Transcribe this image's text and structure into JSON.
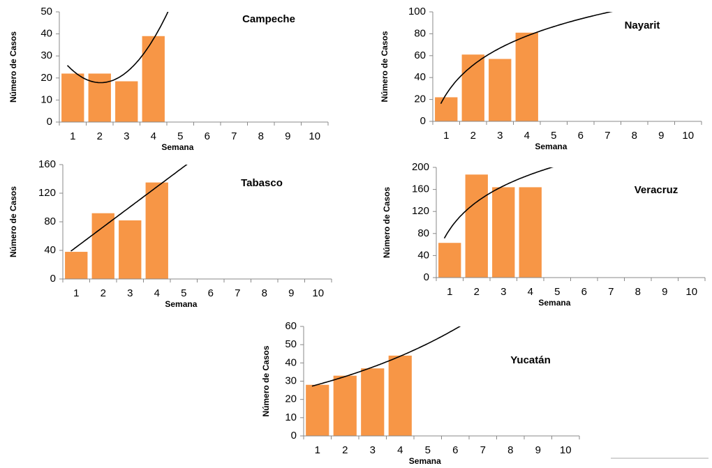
{
  "chart_data": [
    {
      "type": "bar",
      "title": "Campeche",
      "x_label": "Semana",
      "y_label": "Número de Casos",
      "categories": [
        "1",
        "2",
        "3",
        "4",
        "5",
        "6",
        "7",
        "8",
        "9",
        "10"
      ],
      "values": [
        22,
        22,
        18.5,
        39,
        null,
        null,
        null,
        null,
        null,
        null
      ],
      "color": "#f79646",
      "ylim": [
        0,
        50
      ],
      "yticks": [
        0,
        10,
        20,
        30,
        40,
        50
      ],
      "trendline": "poly2"
    },
    {
      "type": "bar",
      "title": "Nayarit",
      "x_label": "Semana",
      "y_label": "Número de Casos",
      "categories": [
        "1",
        "2",
        "3",
        "4",
        "5",
        "6",
        "7",
        "8",
        "9",
        "10"
      ],
      "values": [
        22,
        61,
        57,
        81,
        null,
        null,
        null,
        null,
        null,
        null
      ],
      "color": "#f79646",
      "ylim": [
        0,
        100
      ],
      "yticks": [
        0,
        20,
        40,
        60,
        80,
        100
      ],
      "trendline": "log"
    },
    {
      "type": "bar",
      "title": "Tabasco",
      "x_label": "Semana",
      "y_label": "Número de Casos",
      "categories": [
        "1",
        "2",
        "3",
        "4",
        "5",
        "6",
        "7",
        "8",
        "9",
        "10"
      ],
      "values": [
        38,
        92,
        82,
        135,
        null,
        null,
        null,
        null,
        null,
        null
      ],
      "color": "#f79646",
      "ylim": [
        0,
        160
      ],
      "yticks": [
        0,
        40,
        80,
        120,
        160
      ],
      "trendline": "linear"
    },
    {
      "type": "bar",
      "title": "Veracruz",
      "x_label": "Semana",
      "y_label": "Número de Casos",
      "categories": [
        "1",
        "2",
        "3",
        "4",
        "5",
        "6",
        "7",
        "8",
        "9",
        "10"
      ],
      "values": [
        63,
        187,
        164,
        164,
        null,
        null,
        null,
        null,
        null,
        null
      ],
      "color": "#f79646",
      "ylim": [
        0,
        200
      ],
      "yticks": [
        0,
        40,
        80,
        120,
        160,
        200
      ],
      "trendline": "log"
    },
    {
      "type": "bar",
      "title": "Yucatán",
      "x_label": "Semana",
      "y_label": "Número de Casos",
      "categories": [
        "1",
        "2",
        "3",
        "4",
        "5",
        "6",
        "7",
        "8",
        "9",
        "10"
      ],
      "values": [
        28,
        33,
        37,
        44,
        null,
        null,
        null,
        null,
        null,
        null
      ],
      "color": "#f79646",
      "ylim": [
        0,
        60
      ],
      "yticks": [
        0,
        10,
        20,
        30,
        40,
        50,
        60
      ],
      "trendline": "exp"
    }
  ]
}
